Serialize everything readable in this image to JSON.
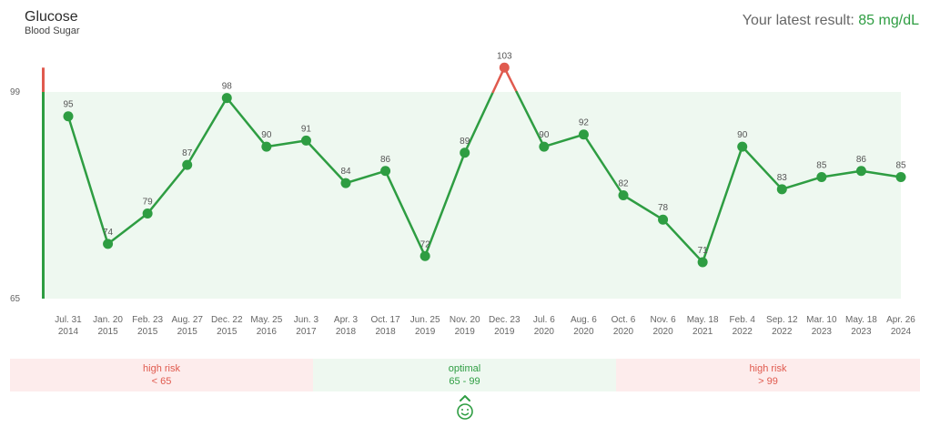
{
  "header": {
    "title": "Glucose",
    "subtitle": "Blood Sugar",
    "latest_prefix": "Your latest result: ",
    "latest_value": "85 mg/dL"
  },
  "colors": {
    "in_range": "#2e9d42",
    "out_of_range": "#e05a4e",
    "optimal_band": "#eef8f0",
    "risk_band": "#fdecec"
  },
  "chart_data": {
    "type": "line",
    "title": "",
    "xlabel": "",
    "ylabel": "",
    "ylim": [
      65,
      99
    ],
    "y_ticks": [
      65,
      99
    ],
    "optimal_range": [
      65,
      99
    ],
    "x": [
      [
        "Jul. 31",
        "2014"
      ],
      [
        "Jan. 20",
        "2015"
      ],
      [
        "Feb. 23",
        "2015"
      ],
      [
        "Aug. 27",
        "2015"
      ],
      [
        "Dec. 22",
        "2015"
      ],
      [
        "May. 25",
        "2016"
      ],
      [
        "Jun. 3",
        "2017"
      ],
      [
        "Apr. 3",
        "2018"
      ],
      [
        "Oct. 17",
        "2018"
      ],
      [
        "Jun. 25",
        "2019"
      ],
      [
        "Nov. 20",
        "2019"
      ],
      [
        "Dec. 23",
        "2019"
      ],
      [
        "Jul. 6",
        "2020"
      ],
      [
        "Aug. 6",
        "2020"
      ],
      [
        "Oct. 6",
        "2020"
      ],
      [
        "Nov. 6",
        "2020"
      ],
      [
        "May. 18",
        "2021"
      ],
      [
        "Feb. 4",
        "2022"
      ],
      [
        "Sep. 12",
        "2022"
      ],
      [
        "Mar. 10",
        "2023"
      ],
      [
        "May. 18",
        "2023"
      ],
      [
        "Apr. 26",
        "2024"
      ]
    ],
    "values": [
      95,
      74,
      79,
      87,
      98,
      90,
      91,
      84,
      86,
      72,
      89,
      103,
      90,
      92,
      82,
      78,
      71,
      90,
      83,
      85,
      86,
      85
    ]
  },
  "ranges": [
    {
      "name": "high risk",
      "range": "< 65"
    },
    {
      "name": "optimal",
      "range": "65 - 99"
    },
    {
      "name": "high risk",
      "range": "> 99"
    }
  ],
  "indicator": {
    "icon": "smiley-icon"
  }
}
